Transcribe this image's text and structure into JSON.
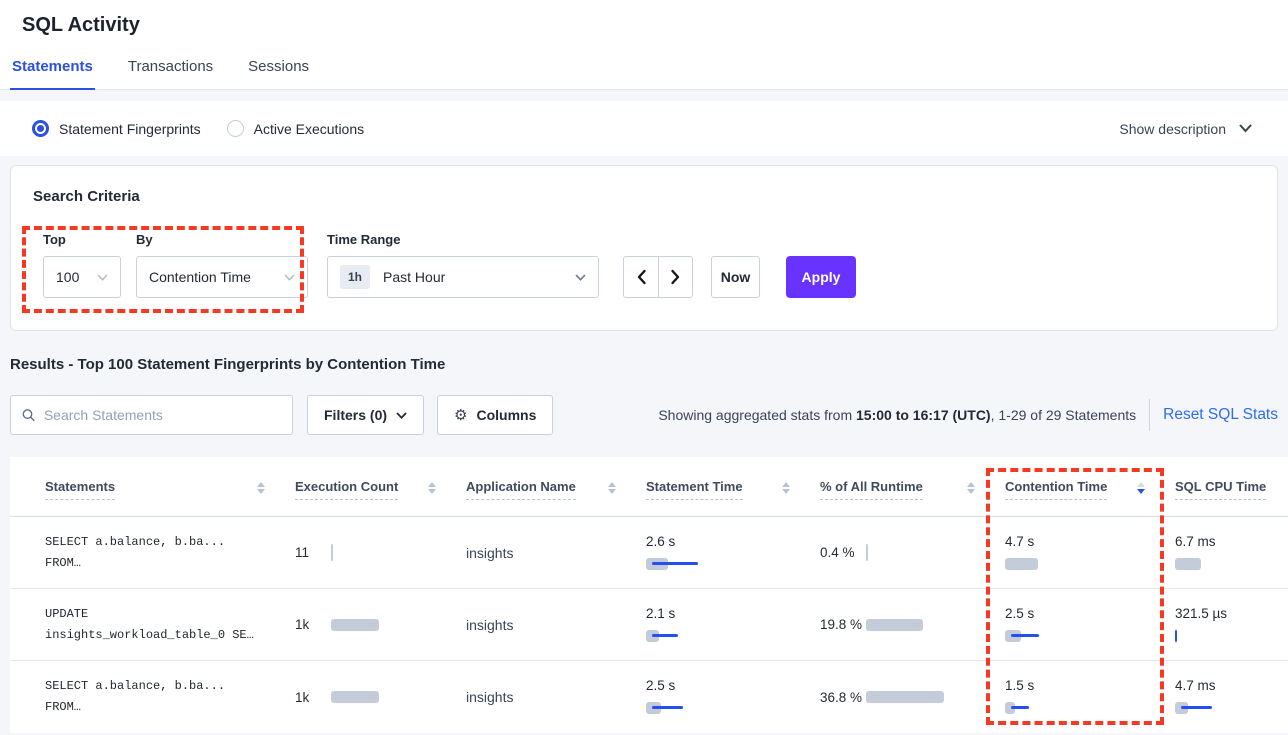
{
  "page": {
    "title": "SQL Activity"
  },
  "tabs": [
    {
      "label": "Statements",
      "active": true
    },
    {
      "label": "Transactions",
      "active": false
    },
    {
      "label": "Sessions",
      "active": false
    }
  ],
  "view_toggle": {
    "options": [
      {
        "label": "Statement Fingerprints",
        "selected": true
      },
      {
        "label": "Active Executions",
        "selected": false
      }
    ],
    "show_description": "Show description"
  },
  "search_criteria": {
    "title": "Search Criteria",
    "top": {
      "label": "Top",
      "value": "100"
    },
    "by": {
      "label": "By",
      "value": "Contention Time"
    },
    "time_range": {
      "label": "Time Range",
      "badge": "1h",
      "value": "Past Hour"
    },
    "now_label": "Now",
    "apply_label": "Apply"
  },
  "results": {
    "heading": "Results - Top 100 Statement Fingerprints by Contention Time",
    "search_placeholder": "Search Statements",
    "filters_label": "Filters (0)",
    "columns_label": "Columns",
    "stats_prefix": "Showing aggregated stats from ",
    "stats_bold": "15:00 to 16:17 (UTC)",
    "stats_suffix": ", 1-29 of 29 Statements",
    "reset_label": "Reset SQL Stats"
  },
  "table": {
    "columns": [
      {
        "label": "Statements",
        "sort": "none"
      },
      {
        "label": "Execution Count",
        "sort": "none"
      },
      {
        "label": "Application Name",
        "sort": "none"
      },
      {
        "label": "Statement Time",
        "sort": "none"
      },
      {
        "label": "% of All Runtime",
        "sort": "none"
      },
      {
        "label": "Contention Time",
        "sort": "desc"
      },
      {
        "label": "SQL CPU Time",
        "sort": "none"
      }
    ],
    "rows": [
      {
        "statement_line1": "SELECT a.balance, b.ba...",
        "statement_line2": "FROM…",
        "execution_count": "11",
        "application": "insights",
        "statement_time": "2.6 s",
        "pct_runtime": "0.4 %",
        "contention_time": "4.7 s",
        "sql_cpu_time": "6.7 ms",
        "bars": {
          "execution": {
            "gray": 2,
            "blue": 0
          },
          "statement_time": {
            "gray": 22,
            "blue": 46
          },
          "pct_runtime": {
            "gray": 2,
            "blue": 0
          },
          "contention": {
            "gray": 33,
            "blue": 0
          },
          "sql_cpu": {
            "gray": 26,
            "blue": 0
          }
        }
      },
      {
        "statement_line1": "UPDATE",
        "statement_line2": "insights_workload_table_0 SE…",
        "execution_count": "1k",
        "application": "insights",
        "statement_time": "2.1 s",
        "pct_runtime": "19.8 %",
        "contention_time": "2.5 s",
        "sql_cpu_time": "321.5 µs",
        "bars": {
          "execution": {
            "gray": 48,
            "blue": 0
          },
          "statement_time": {
            "gray": 13,
            "blue": 26
          },
          "pct_runtime": {
            "gray": 57,
            "blue": 0
          },
          "contention": {
            "gray": 16,
            "blue": 28
          },
          "sql_cpu": {
            "gray": 0,
            "blue": 2
          }
        }
      },
      {
        "statement_line1": "SELECT a.balance, b.ba...",
        "statement_line2": "FROM…",
        "execution_count": "1k",
        "application": "insights",
        "statement_time": "2.5 s",
        "pct_runtime": "36.8 %",
        "contention_time": "1.5 s",
        "sql_cpu_time": "4.7 ms",
        "bars": {
          "execution": {
            "gray": 48,
            "blue": 0
          },
          "statement_time": {
            "gray": 15,
            "blue": 31
          },
          "pct_runtime": {
            "gray": 78,
            "blue": 0
          },
          "contention": {
            "gray": 10,
            "blue": 18
          },
          "sql_cpu": {
            "gray": 13,
            "blue": 31
          }
        }
      }
    ]
  },
  "colors": {
    "accent_blue": "#2b50e2",
    "link_blue": "#2e6bf3",
    "apply_purple": "#6933ff",
    "annotation_red": "#f53923",
    "bar_gray": "#c4cbd9",
    "bar_blue": "#2250f4"
  }
}
